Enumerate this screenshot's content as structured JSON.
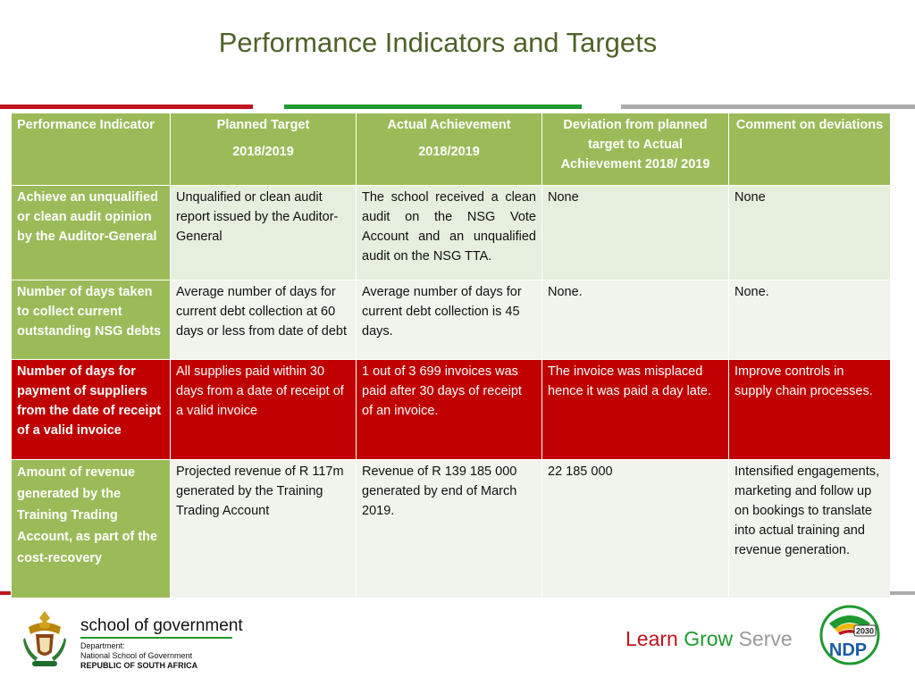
{
  "title": "Performance Indicators and Targets",
  "colors": {
    "header_green": "#9bbb59",
    "alert_red": "#c00000",
    "title_green": "#4f6228"
  },
  "table": {
    "headers": [
      {
        "main": "Performance Indicator",
        "sub": ""
      },
      {
        "main": "Planned Target",
        "sub": "2018/2019"
      },
      {
        "main": "Actual Achievement",
        "sub": "2018/2019"
      },
      {
        "main": "Deviation from planned target to Actual Achievement 2018/ 2019",
        "sub": ""
      },
      {
        "main": "Comment on deviations",
        "sub": ""
      }
    ],
    "rows": [
      {
        "indicator": "Achieve an  unqualified or clean audit  opinion by the Auditor-General",
        "planned": "Unqualified or clean audit report issued  by the Auditor- General",
        "actual": "The school received a clean audit on the NSG Vote Account and an unqualified audit on the NSG TTA.",
        "deviation": "None",
        "comment": "None"
      },
      {
        "indicator": "Number of days  taken to collect current outstanding NSG debts",
        "planned": "Average number of days for current debt collection at 60 days or less from date of debt",
        "actual": "Average number of days for current debt collection is 45 days.",
        "deviation": "None.",
        "comment": "None."
      },
      {
        "indicator": "Number of days for payment of suppliers from the date of receipt of a valid invoice",
        "planned": "All supplies paid within 30 days from a date  of receipt of a valid  invoice",
        "actual": "1 out of 3 699 invoices was paid after 30 days of receipt of an invoice.",
        "deviation": "The invoice was misplaced hence it was paid a day late.",
        "comment": "Improve controls in supply chain processes."
      },
      {
        "indicator": "Amount of revenue generated by the Training Trading Account, as part of the cost-recovery",
        "planned": "Projected revenue of  R 117m generated by the Training Trading Account",
        "actual": "Revenue of R 139 185 000 generated by end of March 2019.",
        "deviation": "22 185 000",
        "comment": "Intensified engagements, marketing and follow up on bookings to translate into actual training and revenue generation."
      }
    ]
  },
  "footer": {
    "org_name": "school of government",
    "dept_line1": "Department:",
    "dept_line2": "National School of Government",
    "dept_line3": "REPUBLIC OF SOUTH AFRICA",
    "tagline_learn": "Learn",
    "tagline_grow": "Grow",
    "tagline_serve": "Serve",
    "ndp_year": "2030",
    "ndp_text": "NDP"
  }
}
